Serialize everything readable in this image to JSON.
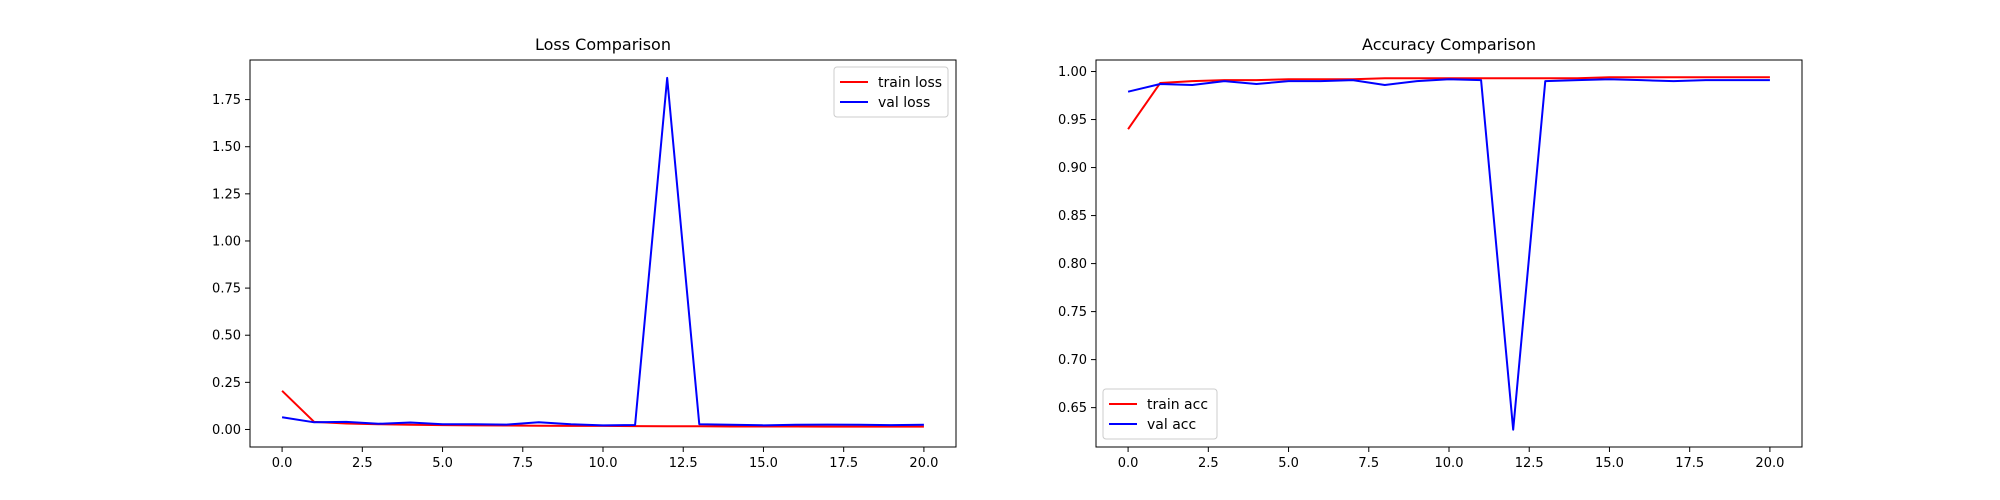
{
  "chart_data": [
    {
      "type": "line",
      "title": "Loss Comparison",
      "xlabel": "",
      "ylabel": "",
      "xlim": [
        -1.0,
        21.0
      ],
      "ylim": [
        -0.093,
        1.96
      ],
      "xticks": [
        0.0,
        2.5,
        5.0,
        7.5,
        10.0,
        12.5,
        15.0,
        17.5,
        20.0
      ],
      "xtick_labels": [
        "0.0",
        "2.5",
        "5.0",
        "7.5",
        "10.0",
        "12.5",
        "15.0",
        "17.5",
        "20.0"
      ],
      "yticks": [
        0.0,
        0.25,
        0.5,
        0.75,
        1.0,
        1.25,
        1.5,
        1.75
      ],
      "ytick_labels": [
        "0.00",
        "0.25",
        "0.50",
        "0.75",
        "1.00",
        "1.25",
        "1.50",
        "1.75"
      ],
      "grid": false,
      "legend_position": "top-right",
      "x": [
        0,
        1,
        2,
        3,
        4,
        5,
        6,
        7,
        8,
        9,
        10,
        11,
        12,
        13,
        14,
        15,
        16,
        17,
        18,
        19,
        20
      ],
      "series": [
        {
          "name": "train loss",
          "color": "#ff0000",
          "values": [
            0.205,
            0.04,
            0.032,
            0.028,
            0.025,
            0.023,
            0.022,
            0.021,
            0.02,
            0.019,
            0.019,
            0.018,
            0.017,
            0.017,
            0.016,
            0.016,
            0.016,
            0.015,
            0.015,
            0.015,
            0.015
          ]
        },
        {
          "name": "val loss",
          "color": "#0000ff",
          "values": [
            0.065,
            0.038,
            0.04,
            0.03,
            0.037,
            0.028,
            0.028,
            0.026,
            0.038,
            0.028,
            0.022,
            0.024,
            1.865,
            0.028,
            0.025,
            0.022,
            0.025,
            0.026,
            0.025,
            0.023,
            0.025
          ]
        }
      ]
    },
    {
      "type": "line",
      "title": "Accuracy Comparison",
      "xlabel": "",
      "ylabel": "",
      "xlim": [
        -1.0,
        21.0
      ],
      "ylim": [
        0.609,
        1.012
      ],
      "xticks": [
        0.0,
        2.5,
        5.0,
        7.5,
        10.0,
        12.5,
        15.0,
        17.5,
        20.0
      ],
      "xtick_labels": [
        "0.0",
        "2.5",
        "5.0",
        "7.5",
        "10.0",
        "12.5",
        "15.0",
        "17.5",
        "20.0"
      ],
      "yticks": [
        0.65,
        0.7,
        0.75,
        0.8,
        0.85,
        0.9,
        0.95,
        1.0
      ],
      "ytick_labels": [
        "0.65",
        "0.70",
        "0.75",
        "0.80",
        "0.85",
        "0.90",
        "0.95",
        "1.00"
      ],
      "grid": false,
      "legend_position": "bottom-left",
      "x": [
        0,
        1,
        2,
        3,
        4,
        5,
        6,
        7,
        8,
        9,
        10,
        11,
        12,
        13,
        14,
        15,
        16,
        17,
        18,
        19,
        20
      ],
      "series": [
        {
          "name": "train acc",
          "color": "#ff0000",
          "values": [
            0.94,
            0.988,
            0.99,
            0.991,
            0.991,
            0.992,
            0.992,
            0.992,
            0.993,
            0.993,
            0.993,
            0.993,
            0.993,
            0.993,
            0.993,
            0.994,
            0.994,
            0.994,
            0.994,
            0.994,
            0.994
          ]
        },
        {
          "name": "val acc",
          "color": "#0000ff",
          "values": [
            0.979,
            0.987,
            0.986,
            0.99,
            0.987,
            0.99,
            0.99,
            0.991,
            0.986,
            0.99,
            0.992,
            0.991,
            0.627,
            0.99,
            0.991,
            0.992,
            0.991,
            0.99,
            0.991,
            0.991,
            0.991
          ]
        }
      ]
    }
  ]
}
